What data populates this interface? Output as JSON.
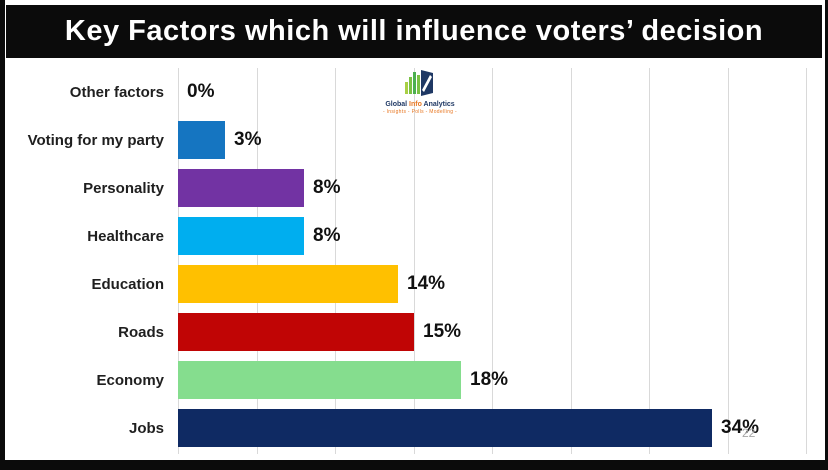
{
  "header": {
    "title": "Key Factors which will influence voters’ decision"
  },
  "logo": {
    "name_part1": "Global ",
    "name_part2": "Info",
    "name_part3": " Analytics",
    "tagline": "- Insights - Polls - Modelling -"
  },
  "page_number": "22",
  "colors": {
    "frame": "#0b0b0b",
    "background": "#ffffff",
    "gridline": "#d9d9d9",
    "label_text": "#1f1f1f",
    "value_text": "#111111",
    "page_number_text": "#a6a6a6"
  },
  "chart_data": {
    "type": "bar",
    "orientation": "horizontal",
    "title": "Key Factors which will influence voters’ decision",
    "categories": [
      "Other factors",
      "Voting for my party",
      "Personality",
      "Healthcare",
      "Education",
      "Roads",
      "Economy",
      "Jobs"
    ],
    "values": [
      0,
      3,
      8,
      8,
      14,
      15,
      18,
      34
    ],
    "value_labels": [
      "0%",
      "3%",
      "8%",
      "8%",
      "14%",
      "15%",
      "18%",
      "34%"
    ],
    "bar_colors": [
      "#ffffff",
      "#1575c1",
      "#7233a3",
      "#00aeef",
      "#ffc000",
      "#c00505",
      "#85dd8e",
      "#0f2a63"
    ],
    "xlabel": "",
    "ylabel": "",
    "xlim": [
      0,
      40
    ],
    "gridline_step": 5,
    "grid": true,
    "legend": false,
    "data_labels": "outside-end"
  }
}
